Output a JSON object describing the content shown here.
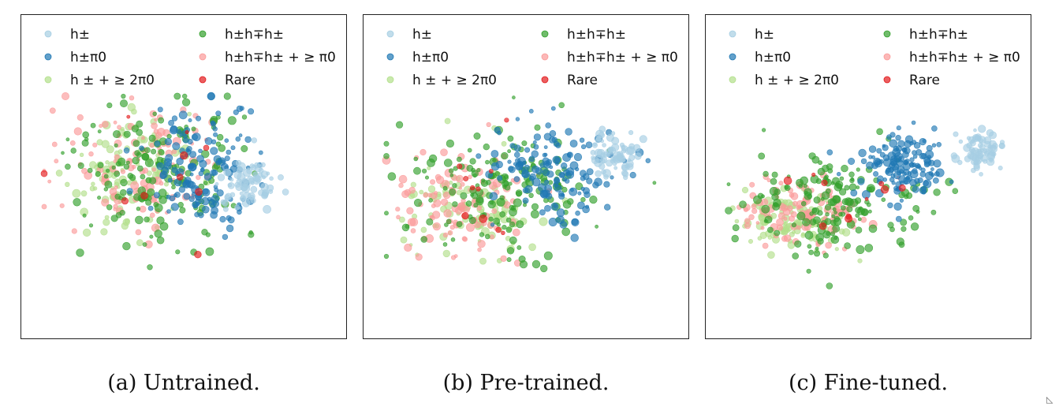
{
  "legend": [
    {
      "key": "h",
      "color": "#a6cee3",
      "label": "h±"
    },
    {
      "key": "hpi",
      "color": "#1f78b4",
      "label": "h±π0"
    },
    {
      "key": "h2pi",
      "color": "#b2df8a",
      "label": "h ± + ≥ 2π0"
    },
    {
      "key": "hhh",
      "color": "#33a02c",
      "label": "h±h∓h±"
    },
    {
      "key": "hhhpi",
      "color": "#fb9a99",
      "label": "h±h∓h± + ≥ π0"
    },
    {
      "key": "rare",
      "color": "#e31a1c",
      "label": "Rare"
    }
  ],
  "chart_data": [
    {
      "type": "scatter",
      "panel": "a",
      "caption": "(a) Untrained.",
      "xlabel": "",
      "ylabel": "",
      "grid": false,
      "legend_position": "top",
      "clusters": [
        {
          "class": "h",
          "cx": 0.7,
          "cy": 0.52,
          "sx": 0.05,
          "sy": 0.04,
          "n": 70
        },
        {
          "class": "hpi",
          "cx": 0.55,
          "cy": 0.47,
          "sx": 0.09,
          "sy": 0.1,
          "n": 150
        },
        {
          "class": "hhh",
          "cx": 0.42,
          "cy": 0.47,
          "sx": 0.13,
          "sy": 0.12,
          "n": 170
        },
        {
          "class": "h2pi",
          "cx": 0.32,
          "cy": 0.48,
          "sx": 0.09,
          "sy": 0.09,
          "n": 110
        },
        {
          "class": "hhhpi",
          "cx": 0.35,
          "cy": 0.45,
          "sx": 0.11,
          "sy": 0.1,
          "n": 110
        },
        {
          "class": "rare",
          "cx": 0.45,
          "cy": 0.55,
          "sx": 0.12,
          "sy": 0.14,
          "n": 10
        }
      ]
    },
    {
      "type": "scatter",
      "panel": "b",
      "caption": "(b) Pre-trained.",
      "xlabel": "",
      "ylabel": "",
      "grid": false,
      "legend_position": "top",
      "clusters": [
        {
          "class": "h",
          "cx": 0.77,
          "cy": 0.43,
          "sx": 0.04,
          "sy": 0.035,
          "n": 70
        },
        {
          "class": "hpi",
          "cx": 0.58,
          "cy": 0.48,
          "sx": 0.09,
          "sy": 0.08,
          "n": 140
        },
        {
          "class": "hhh",
          "cx": 0.42,
          "cy": 0.55,
          "sx": 0.15,
          "sy": 0.1,
          "n": 170
        },
        {
          "class": "h2pi",
          "cx": 0.32,
          "cy": 0.6,
          "sx": 0.1,
          "sy": 0.07,
          "n": 110
        },
        {
          "class": "hhhpi",
          "cx": 0.3,
          "cy": 0.58,
          "sx": 0.1,
          "sy": 0.08,
          "n": 110
        },
        {
          "class": "rare",
          "cx": 0.4,
          "cy": 0.55,
          "sx": 0.12,
          "sy": 0.08,
          "n": 10
        }
      ]
    },
    {
      "type": "scatter",
      "panel": "c",
      "caption": "(c) Fine-tuned.",
      "xlabel": "",
      "ylabel": "",
      "grid": false,
      "legend_position": "top",
      "clusters": [
        {
          "class": "h",
          "cx": 0.84,
          "cy": 0.42,
          "sx": 0.035,
          "sy": 0.03,
          "n": 70
        },
        {
          "class": "hpi",
          "cx": 0.61,
          "cy": 0.46,
          "sx": 0.07,
          "sy": 0.05,
          "n": 140
        },
        {
          "class": "hhh",
          "cx": 0.4,
          "cy": 0.58,
          "sx": 0.14,
          "sy": 0.08,
          "n": 170
        },
        {
          "class": "h2pi",
          "cx": 0.28,
          "cy": 0.64,
          "sx": 0.08,
          "sy": 0.05,
          "n": 110
        },
        {
          "class": "hhhpi",
          "cx": 0.3,
          "cy": 0.62,
          "sx": 0.09,
          "sy": 0.05,
          "n": 110
        },
        {
          "class": "rare",
          "cx": 0.4,
          "cy": 0.56,
          "sx": 0.12,
          "sy": 0.06,
          "n": 10
        }
      ]
    }
  ]
}
